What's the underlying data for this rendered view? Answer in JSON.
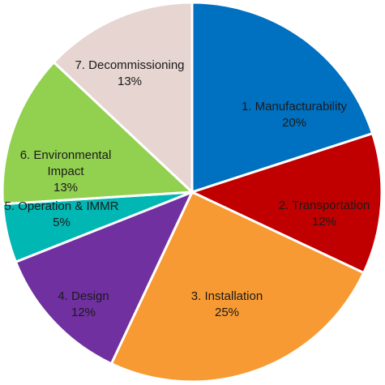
{
  "chart_data": {
    "type": "pie",
    "slices": [
      {
        "lines": [
          "1. Manufacturability"
        ],
        "value_label": "20%",
        "value": 20,
        "color": "#0070C0"
      },
      {
        "lines": [
          "2. Transportation"
        ],
        "value_label": "12%",
        "value": 12,
        "color": "#C00000"
      },
      {
        "lines": [
          "3. Installation"
        ],
        "value_label": "25%",
        "value": 25,
        "color": "#F79A33"
      },
      {
        "lines": [
          "4. Design"
        ],
        "value_label": "12%",
        "value": 12,
        "color": "#7030A0"
      },
      {
        "lines": [
          "5. Operation & IMMR"
        ],
        "value_label": "5%",
        "value": 5,
        "color": "#00B7B3"
      },
      {
        "lines": [
          "6. Environmental",
          "Impact"
        ],
        "value_label": "13%",
        "value": 13,
        "color": "#92D050"
      },
      {
        "lines": [
          "7. Decommissioning"
        ],
        "value_label": "13%",
        "value": 13,
        "color": "#E6D5D1"
      }
    ],
    "legend": "none",
    "labels": "inside"
  }
}
